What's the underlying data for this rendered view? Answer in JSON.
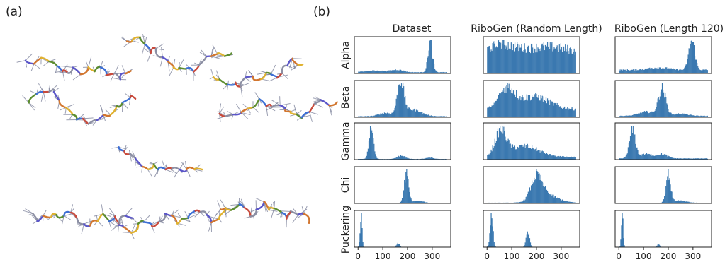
{
  "panels": {
    "a": "(a)",
    "b": "(b)"
  },
  "structures": {
    "count": 9,
    "colors": [
      "#5b56c9",
      "#d2762f",
      "#e0b230",
      "#5c8d2f",
      "#3d6fd6",
      "#c84a3b",
      "#8c8fa3"
    ]
  },
  "chart_data": {
    "type": "bar",
    "subtype": "histogram grid",
    "columns": [
      "Dataset",
      "RiboGen (Random Length)",
      "RiboGen (Length 120)"
    ],
    "rows": [
      "Alpha",
      "Beta",
      "Gamma",
      "Chi",
      "Puckering"
    ],
    "x_ticks": [
      "0",
      "100",
      "200",
      "300"
    ],
    "xlim": [
      -15,
      375
    ],
    "bar_color": "#3a78b0",
    "bins": 120,
    "note_units": "degrees",
    "distributions": [
      {
        "row": "Alpha",
        "column": "Dataset",
        "components": [
          {
            "mean": 292,
            "sd": 9,
            "weight": 1.0
          },
          {
            "mean": 160,
            "sd": 22,
            "weight": 0.08
          },
          {
            "mean": 70,
            "sd": 45,
            "weight": 0.05
          }
        ],
        "baseline": 0.04
      },
      {
        "row": "Alpha",
        "column": "RiboGen (Random Length)",
        "components": [
          {
            "mean": 60,
            "sd": 60,
            "weight": 0.25
          },
          {
            "mean": 250,
            "sd": 80,
            "weight": 0.2
          }
        ],
        "baseline": 0.6
      },
      {
        "row": "Alpha",
        "column": "RiboGen (Length 120)",
        "components": [
          {
            "mean": 295,
            "sd": 12,
            "weight": 1.0
          },
          {
            "mean": 160,
            "sd": 40,
            "weight": 0.08
          }
        ],
        "baseline": 0.12
      },
      {
        "row": "Beta",
        "column": "Dataset",
        "components": [
          {
            "mean": 172,
            "sd": 13,
            "weight": 1.0
          },
          {
            "mean": 220,
            "sd": 35,
            "weight": 0.2
          },
          {
            "mean": 110,
            "sd": 25,
            "weight": 0.1
          }
        ],
        "baseline": 0.03
      },
      {
        "row": "Beta",
        "column": "RiboGen (Random Length)",
        "components": [
          {
            "mean": 80,
            "sd": 30,
            "weight": 0.55
          },
          {
            "mean": 190,
            "sd": 60,
            "weight": 0.35
          }
        ],
        "baseline": 0.22
      },
      {
        "row": "Beta",
        "column": "RiboGen (Length 120)",
        "components": [
          {
            "mean": 175,
            "sd": 15,
            "weight": 1.0
          },
          {
            "mean": 110,
            "sd": 30,
            "weight": 0.15
          },
          {
            "mean": 250,
            "sd": 30,
            "weight": 0.08
          }
        ],
        "baseline": 0.05
      },
      {
        "row": "Gamma",
        "column": "Dataset",
        "components": [
          {
            "mean": 53,
            "sd": 9,
            "weight": 1.0
          },
          {
            "mean": 175,
            "sd": 15,
            "weight": 0.12
          },
          {
            "mean": 290,
            "sd": 15,
            "weight": 0.04
          }
        ],
        "baseline": 0.02
      },
      {
        "row": "Gamma",
        "column": "RiboGen (Random Length)",
        "components": [
          {
            "mean": 55,
            "sd": 22,
            "weight": 1.0
          },
          {
            "mean": 150,
            "sd": 60,
            "weight": 0.45
          }
        ],
        "baseline": 0.1
      },
      {
        "row": "Gamma",
        "column": "RiboGen (Length 120)",
        "components": [
          {
            "mean": 55,
            "sd": 12,
            "weight": 1.0
          },
          {
            "mean": 175,
            "sd": 22,
            "weight": 0.15
          },
          {
            "mean": 110,
            "sd": 25,
            "weight": 0.15
          }
        ],
        "baseline": 0.04
      },
      {
        "row": "Chi",
        "column": "Dataset",
        "components": [
          {
            "mean": 195,
            "sd": 9,
            "weight": 1.0
          },
          {
            "mean": 240,
            "sd": 25,
            "weight": 0.08
          }
        ],
        "baseline": 0.01
      },
      {
        "row": "Chi",
        "column": "RiboGen (Random Length)",
        "components": [
          {
            "mean": 200,
            "sd": 22,
            "weight": 1.0
          },
          {
            "mean": 240,
            "sd": 45,
            "weight": 0.35
          }
        ],
        "baseline": 0.03
      },
      {
        "row": "Chi",
        "column": "RiboGen (Length 120)",
        "components": [
          {
            "mean": 200,
            "sd": 9,
            "weight": 1.0
          },
          {
            "mean": 240,
            "sd": 30,
            "weight": 0.08
          }
        ],
        "baseline": 0.02
      },
      {
        "row": "Puckering",
        "column": "Dataset",
        "components": [
          {
            "mean": 12,
            "sd": 4,
            "weight": 1.0
          },
          {
            "mean": 162,
            "sd": 6,
            "weight": 0.12
          }
        ],
        "baseline": 0.0
      },
      {
        "row": "Puckering",
        "column": "RiboGen (Random Length)",
        "components": [
          {
            "mean": 18,
            "sd": 6,
            "weight": 1.0
          },
          {
            "mean": 165,
            "sd": 7,
            "weight": 0.48
          }
        ],
        "baseline": 0.0
      },
      {
        "row": "Puckering",
        "column": "RiboGen (Length 120)",
        "components": [
          {
            "mean": 14,
            "sd": 3.5,
            "weight": 1.0
          },
          {
            "mean": 160,
            "sd": 6,
            "weight": 0.07
          }
        ],
        "baseline": 0.0
      }
    ]
  }
}
